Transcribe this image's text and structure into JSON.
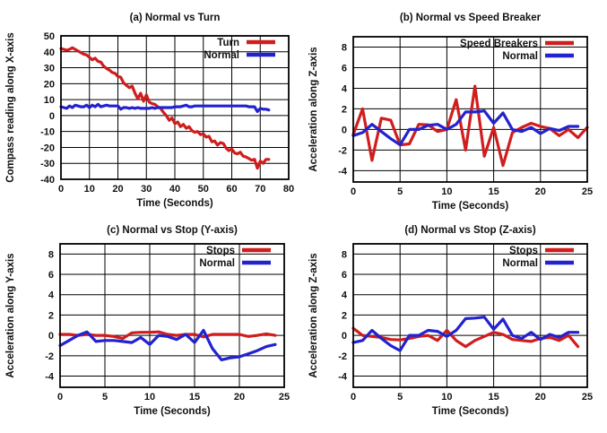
{
  "figure": {
    "background": "#ffffff"
  },
  "colors": {
    "red": "#d01d1d",
    "blue": "#2222cf",
    "text": "#111111",
    "grid": "#000000",
    "border": "#000000"
  },
  "chart_data": [
    {
      "id": "a",
      "type": "line",
      "title": "(a) Normal vs Turn",
      "xlabel": "Time (Seconds)",
      "ylabel": "Compass reading along X-axis",
      "xlim": [
        0,
        80
      ],
      "ylim": [
        -40,
        50
      ],
      "xticks": [
        0,
        10,
        20,
        30,
        40,
        50,
        60,
        70,
        80
      ],
      "yticks": [
        -40,
        -30,
        -20,
        -10,
        0,
        10,
        20,
        30,
        40,
        50
      ],
      "grid": true,
      "legend_position": "top-right-inside",
      "series": [
        {
          "name": "Turn",
          "color": "red",
          "x_start": 0,
          "x_step": 1,
          "values": [
            42,
            41.5,
            41,
            41.5,
            42.5,
            41.5,
            40.5,
            39.5,
            38.5,
            38,
            36.5,
            35,
            36,
            34,
            33.5,
            31,
            29.5,
            28.5,
            27,
            26.5,
            24.5,
            24,
            20.5,
            19,
            17.5,
            18.5,
            14,
            10.5,
            14,
            9,
            13,
            8.5,
            7.5,
            7,
            5.5,
            4.5,
            2,
            0,
            -3,
            -1.5,
            -5,
            -4,
            -7,
            -5.5,
            -8,
            -7,
            -9.5,
            -10.5,
            -10,
            -12,
            -11.5,
            -13.5,
            -13,
            -16.5,
            -16,
            -18.5,
            -17,
            -17.5,
            -20.5,
            -22,
            -21,
            -23.5,
            -24,
            -23,
            -25.5,
            -26,
            -27,
            -28,
            -27.5,
            -33,
            -28.5,
            -30,
            -27.5,
            -27.5
          ]
        },
        {
          "name": "Normal",
          "color": "blue",
          "x_start": 0,
          "x_step": 1,
          "values": [
            5.5,
            5,
            4.5,
            6,
            5,
            6.5,
            6,
            5.5,
            5.5,
            6.5,
            5,
            6.5,
            5.5,
            7,
            5.5,
            6,
            6.5,
            6,
            6,
            6,
            6,
            4,
            5,
            5,
            4.5,
            5,
            4.5,
            5,
            4.5,
            4.5,
            4.5,
            4.5,
            5,
            4.5,
            5,
            5,
            5,
            5,
            5,
            5,
            5.5,
            5.5,
            5.5,
            6,
            6.5,
            5.5,
            5.5,
            6,
            6,
            6,
            6,
            6,
            6,
            6,
            6,
            6,
            6,
            6,
            6,
            6,
            6,
            6,
            6,
            6,
            6,
            6,
            5.5,
            5.5,
            5.5,
            2.5,
            4.5,
            4,
            4,
            3.5
          ]
        }
      ]
    },
    {
      "id": "b",
      "type": "line",
      "title": "(b) Normal vs Speed Breaker",
      "xlabel": "Time (Seconds)",
      "ylabel": "Acceleration along Z-axis",
      "xlim": [
        0,
        25
      ],
      "ylim": [
        -5.1,
        9.0
      ],
      "xticks": [
        0,
        5,
        10,
        15,
        20,
        25
      ],
      "yticks": [
        -4,
        -2,
        0,
        2,
        4,
        6,
        8
      ],
      "grid": true,
      "legend_position": "top-right-inside",
      "series": [
        {
          "name": "Speed Breakers",
          "color": "red",
          "x_start": 0,
          "x_step": 1,
          "values": [
            -0.5,
            2.0,
            -3.0,
            1.1,
            0.9,
            -1.5,
            -1.4,
            0.5,
            0.45,
            -0.2,
            0.0,
            2.9,
            -2.0,
            4.2,
            -2.6,
            0.2,
            -3.5,
            -0.3,
            0.2,
            0.6,
            0.3,
            0.1,
            -0.6,
            0.0,
            -0.8,
            0.2
          ]
        },
        {
          "name": "Normal",
          "color": "blue",
          "x_start": 0,
          "x_step": 1,
          "values": [
            -0.6,
            -0.3,
            0.5,
            -0.2,
            -0.9,
            -1.5,
            0.0,
            0.0,
            0.4,
            0.5,
            0.0,
            0.5,
            1.7,
            1.7,
            1.8,
            0.6,
            1.6,
            0.0,
            -0.2,
            0.2,
            -0.4,
            0.1,
            -0.1,
            0.3,
            0.3
          ]
        }
      ]
    },
    {
      "id": "c",
      "type": "line",
      "title": "(c) Normal vs Stop (Y-axis)",
      "xlabel": "Time (Seconds)",
      "ylabel": "Acceleration along Y-axis",
      "xlim": [
        0,
        25
      ],
      "ylim": [
        -5.1,
        9.0
      ],
      "xticks": [
        0,
        5,
        10,
        15,
        20,
        25
      ],
      "yticks": [
        -4,
        -2,
        0,
        2,
        4,
        6,
        8
      ],
      "grid": true,
      "legend_position": "top-right-inside",
      "series": [
        {
          "name": "Stops",
          "color": "red",
          "x_start": 0,
          "x_step": 1,
          "values": [
            0.1,
            0.1,
            0.0,
            0.1,
            0.0,
            0.0,
            -0.1,
            -0.3,
            0.25,
            0.3,
            0.3,
            0.35,
            0.1,
            0.0,
            0.1,
            0.1,
            -0.15,
            0.1,
            0.1,
            0.1,
            0.1,
            -0.1,
            0.0,
            0.15,
            0.0
          ]
        },
        {
          "name": "Normal",
          "color": "blue",
          "x_start": 0,
          "x_step": 1,
          "values": [
            -1.0,
            -0.5,
            0.0,
            0.35,
            -0.6,
            -0.5,
            -0.5,
            -0.6,
            -0.7,
            -0.2,
            -0.9,
            0.0,
            -0.1,
            -0.4,
            0.1,
            -0.7,
            0.5,
            -1.3,
            -2.4,
            -2.2,
            -2.1,
            -1.8,
            -1.5,
            -1.1,
            -0.9
          ]
        }
      ]
    },
    {
      "id": "d",
      "type": "line",
      "title": "(d) Normal vs Stop (Z-axis)",
      "xlabel": "Time (Seconds)",
      "ylabel": "Acceleration along Z-axis",
      "xlim": [
        0,
        25
      ],
      "ylim": [
        -5.1,
        9.0
      ],
      "xticks": [
        0,
        5,
        10,
        15,
        20,
        25
      ],
      "yticks": [
        -4,
        -2,
        0,
        2,
        4,
        6,
        8
      ],
      "grid": true,
      "legend_position": "top-right-inside",
      "series": [
        {
          "name": "Stops",
          "color": "red",
          "x_start": 0,
          "x_step": 1,
          "values": [
            0.7,
            0.0,
            -0.1,
            -0.2,
            -0.4,
            -0.45,
            -0.3,
            -0.1,
            0.0,
            -0.5,
            0.5,
            -0.5,
            -1.1,
            -0.5,
            -0.1,
            0.3,
            0.1,
            -0.4,
            -0.5,
            -0.6,
            -0.3,
            -0.2,
            -0.5,
            0.0,
            -1.1
          ]
        },
        {
          "name": "Normal",
          "color": "blue",
          "x_start": 0,
          "x_step": 1,
          "values": [
            -0.7,
            -0.5,
            0.5,
            -0.3,
            -1.0,
            -1.5,
            0.0,
            0.0,
            0.5,
            0.4,
            -0.1,
            0.5,
            1.65,
            1.7,
            1.8,
            0.6,
            1.6,
            0.0,
            -0.3,
            0.3,
            -0.4,
            0.1,
            -0.2,
            0.3,
            0.3
          ]
        }
      ]
    }
  ]
}
